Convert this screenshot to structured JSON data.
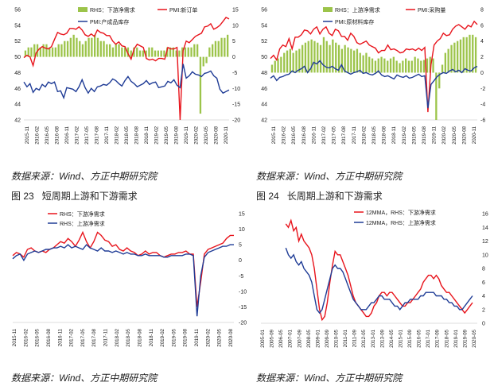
{
  "sources": [
    "数据来源：Wind、方正中期研究院",
    "数据来源：Wind、方正中期研究院",
    "数据来源：Wind、方正中期研究院",
    "数据来源：Wind、方正中期研究院"
  ],
  "captions": [
    {
      "label": "图 23",
      "title": "短周期上游和下游需求"
    },
    {
      "label": "图 24",
      "title": "长周期上游和下游需求"
    }
  ],
  "colors": {
    "red": "#e8131b",
    "blue": "#1f3c96",
    "green": "#9cc44a"
  },
  "chart_data": [
    {
      "type": "bar+line",
      "x_ticks": [
        "2015-11",
        "2016-02",
        "2016-05",
        "2016-08",
        "2016-11",
        "2017-02",
        "2017-05",
        "2017-08",
        "2017-11",
        "2018-02",
        "2018-05",
        "2018-08",
        "2018-11",
        "2019-02",
        "2019-05",
        "2019-08",
        "2019-11",
        "2020-02",
        "2020-05",
        "2020-08",
        "2020-11"
      ],
      "y_left_ticks": [
        "56",
        "54",
        "52",
        "50",
        "48",
        "46",
        "44",
        "42"
      ],
      "y_left_range": [
        42,
        56
      ],
      "y_right_ticks": [
        "15",
        "10",
        "5",
        "0",
        "-5",
        "-10",
        "-15",
        "-20"
      ],
      "y_right_range": [
        -20,
        15
      ],
      "series": [
        {
          "name": "RHS：下游净需求",
          "axis": "right",
          "kind": "bar",
          "values": [
            2,
            3,
            3,
            4,
            4,
            3,
            4,
            4,
            3,
            3,
            3,
            4,
            4,
            5,
            5,
            6,
            7,
            6,
            5,
            4,
            5,
            6,
            6,
            7,
            6,
            5,
            5,
            4,
            4,
            3,
            4,
            4,
            3,
            3,
            3,
            2,
            3,
            3,
            2,
            2,
            2,
            3,
            3,
            2,
            2,
            2,
            2,
            3,
            3,
            3,
            2,
            2,
            3,
            3,
            3,
            3,
            4,
            4,
            -18,
            -3,
            -2,
            3,
            4,
            5,
            5,
            6,
            6,
            7
          ]
        },
        {
          "name": "PMI:新订单",
          "axis": "left",
          "kind": "line",
          "values": [
            49.9,
            50.2,
            50.0,
            48.9,
            50.5,
            51.0,
            51.3,
            51.1,
            51.0,
            51.3,
            52.2,
            53.1,
            52.9,
            52.8,
            53.0,
            53.6,
            53.6,
            53.5,
            53.8,
            53.4,
            52.8,
            52.6,
            52.9,
            52.6,
            53.4,
            53.1,
            53.0,
            52.7,
            52.7,
            52.0,
            51.6,
            51.9,
            51.4,
            51.3,
            50.4,
            49.7,
            51.0,
            51.6,
            51.4,
            51.2,
            49.8,
            49.6,
            49.7,
            49.5,
            49.8,
            49.8,
            49.7,
            51.2,
            51.0,
            51.0,
            51.2,
            42.0,
            50.8,
            52.0,
            51.8,
            52.2,
            52.6,
            52.8,
            53.0,
            53.8,
            53.9,
            54.2,
            53.5,
            53.7,
            54.0,
            54.5,
            55.0,
            54.8
          ]
        },
        {
          "name": "PMI:产成品库存",
          "axis": "left",
          "kind": "line",
          "values": [
            46.8,
            46.2,
            46.6,
            45.5,
            46.0,
            45.8,
            46.5,
            46.2,
            46.8,
            46.6,
            46.8,
            45.6,
            45.7,
            44.8,
            46.1,
            46.0,
            45.9,
            45.6,
            46.2,
            47.1,
            46.1,
            45.4,
            46.0,
            45.6,
            46.2,
            46.3,
            46.5,
            46.4,
            46.7,
            47.2,
            47.0,
            46.6,
            46.3,
            47.0,
            47.5,
            46.9,
            46.6,
            46.2,
            46.4,
            46.6,
            47.0,
            46.5,
            46.7,
            46.8,
            46.1,
            46.2,
            46.3,
            46.9,
            46.7,
            47.1,
            46.4,
            46.1,
            49.1,
            47.3,
            47.6,
            48.1,
            47.8,
            47.7,
            47.5,
            47.9,
            48.0,
            48.2,
            47.6,
            47.3,
            45.9,
            45.4,
            45.6,
            45.8
          ]
        }
      ]
    },
    {
      "type": "bar+line",
      "x_ticks": [
        "2015-11",
        "2016-02",
        "2016-05",
        "2016-08",
        "2016-11",
        "2017-02",
        "2017-05",
        "2017-08",
        "2017-11",
        "2018-02",
        "2018-05",
        "2018-08",
        "2018-11",
        "2019-02",
        "2019-05",
        "2019-08",
        "2019-11",
        "2020-02",
        "2020-05",
        "2020-08",
        "2020-11"
      ],
      "y_left_ticks": [
        "56",
        "54",
        "52",
        "50",
        "48",
        "46",
        "44",
        "42"
      ],
      "y_left_range": [
        42,
        56
      ],
      "y_right_ticks": [
        "8",
        "6",
        "4",
        "2",
        "0",
        "-2",
        "-4",
        "-6"
      ],
      "y_right_range": [
        -6,
        8
      ],
      "series": [
        {
          "name": "RHS：上游净需求",
          "axis": "right",
          "kind": "bar",
          "values": [
            1.0,
            1.5,
            1.8,
            2.0,
            2.5,
            2.8,
            3.0,
            2.5,
            2.8,
            3.0,
            3.5,
            3.8,
            4.0,
            4.2,
            4.0,
            3.8,
            3.5,
            4.5,
            4.0,
            3.5,
            4.2,
            3.8,
            3.5,
            3.0,
            3.5,
            3.2,
            3.0,
            2.8,
            3.0,
            2.5,
            2.2,
            2.5,
            2.0,
            1.8,
            1.5,
            1.8,
            2.0,
            1.8,
            1.5,
            1.8,
            2.0,
            1.5,
            1.2,
            1.5,
            1.8,
            1.5,
            1.5,
            2.0,
            1.8,
            1.5,
            1.6,
            1.8,
            2.0,
            1.8,
            -6.0,
            -2.0,
            1.0,
            2.5,
            3.0,
            3.5,
            3.8,
            4.0,
            4.2,
            4.5,
            4.5,
            4.8,
            4.8,
            4.5
          ]
        },
        {
          "name": "PMI:采购量",
          "axis": "left",
          "kind": "line",
          "values": [
            49.8,
            50.2,
            49.6,
            51.0,
            51.5,
            51.3,
            52.3,
            51.0,
            52.5,
            52.5,
            52.8,
            53.4,
            53.3,
            52.9,
            53.5,
            53.8,
            52.9,
            53.5,
            53.8,
            53.0,
            52.7,
            53.5,
            53.3,
            52.6,
            52.6,
            52.1,
            53.0,
            52.6,
            51.8,
            51.6,
            51.8,
            52.0,
            51.5,
            51.3,
            51.1,
            50.5,
            50.8,
            50.8,
            51.5,
            50.9,
            51.0,
            50.8,
            50.5,
            50.6,
            51.0,
            50.9,
            51.0,
            50.8,
            51.1,
            50.8,
            51.2,
            43.0,
            49.0,
            51.5,
            52.0,
            52.3,
            53.0,
            52.7,
            52.8,
            53.5,
            53.9,
            54.1,
            53.8,
            53.5,
            54.0,
            53.8,
            54.5,
            54.1
          ]
        },
        {
          "name": "PMI:原材料库存",
          "axis": "left",
          "kind": "line",
          "values": [
            47.3,
            47.6,
            47.0,
            47.4,
            47.5,
            47.7,
            47.8,
            48.2,
            48.0,
            48.3,
            48.5,
            48.8,
            48.0,
            48.5,
            49.3,
            49.1,
            49.5,
            49.0,
            48.7,
            48.6,
            48.8,
            48.5,
            48.3,
            49.0,
            48.2,
            48.0,
            47.8,
            48.0,
            48.1,
            48.3,
            47.9,
            48.0,
            47.8,
            47.7,
            47.9,
            48.2,
            47.7,
            47.5,
            47.6,
            47.4,
            47.2,
            47.7,
            47.5,
            47.4,
            47.6,
            47.3,
            47.4,
            47.6,
            47.8,
            47.5,
            47.6,
            43.5,
            46.5,
            47.0,
            47.5,
            47.8,
            48.0,
            47.9,
            48.2,
            48.4,
            48.1,
            48.3,
            48.0,
            48.5,
            48.3,
            48.2,
            48.6,
            48.8
          ]
        }
      ]
    },
    {
      "type": "line",
      "x_ticks": [
        "2015-11",
        "2016-02",
        "2016-05",
        "2016-08",
        "2016-11",
        "2017-02",
        "2017-05",
        "2017-08",
        "2017-11",
        "2018-02",
        "2018-05",
        "2018-08",
        "2018-11",
        "2019-02",
        "2019-05",
        "2019-08",
        "2019-11",
        "2020-02",
        "2020-05",
        "2020-08"
      ],
      "y_ticks": [
        "15",
        "10",
        "5",
        "0",
        "-5",
        "-10",
        "-15",
        "-20"
      ],
      "y_range": [
        -20,
        15
      ],
      "series": [
        {
          "name": "RHS：下游净需求",
          "values": [
            1.5,
            2.5,
            2.0,
            1.0,
            3.5,
            4.0,
            3.0,
            2.5,
            3.0,
            2.5,
            3.5,
            4.0,
            5.0,
            6.0,
            5.5,
            7.0,
            6.0,
            4.5,
            6.5,
            9.0,
            6.0,
            4.0,
            6.0,
            9.0,
            8.0,
            6.5,
            6.0,
            4.5,
            5.0,
            3.5,
            3.0,
            4.0,
            3.0,
            2.5,
            1.5,
            2.0,
            3.0,
            2.0,
            2.5,
            2.5,
            1.5,
            1.0,
            1.5,
            2.0,
            2.0,
            2.5,
            2.5,
            3.0,
            2.0,
            2.0,
            -15.0,
            -7.0,
            2.0,
            3.5,
            4.0,
            4.5,
            5.0,
            5.5,
            7.0,
            8.0,
            8.0
          ]
        },
        {
          "name": "RHS：上游净需求",
          "values": [
            0.5,
            1.5,
            2.0,
            0.0,
            2.0,
            2.5,
            3.0,
            2.5,
            3.0,
            3.5,
            3.5,
            4.0,
            4.0,
            4.5,
            4.0,
            5.0,
            4.0,
            4.5,
            4.0,
            3.5,
            5.0,
            4.0,
            3.5,
            3.0,
            4.0,
            3.0,
            3.0,
            2.5,
            3.0,
            2.5,
            2.0,
            2.5,
            2.0,
            2.0,
            1.5,
            1.5,
            2.0,
            1.5,
            1.5,
            1.5,
            1.5,
            1.0,
            1.0,
            1.5,
            1.5,
            1.5,
            1.5,
            2.0,
            2.0,
            1.5,
            -18.0,
            -5.0,
            1.0,
            2.5,
            3.0,
            3.5,
            4.0,
            4.5,
            4.5,
            5.0,
            5.0
          ]
        }
      ]
    },
    {
      "type": "line",
      "x_ticks": [
        "2005-01",
        "2005-09",
        "2006-05",
        "2007-01",
        "2007-09",
        "2008-05",
        "2009-01",
        "2009-09",
        "2010-05",
        "2011-01",
        "2011-09",
        "2012-05",
        "2013-01",
        "2013-09",
        "2014-05",
        "2015-01",
        "2015-09",
        "2016-05",
        "2017-01",
        "2017-09",
        "2018-05",
        "2019-01",
        "2019-09",
        "2020-05"
      ],
      "y_ticks": [
        "16",
        "14",
        "12",
        "10",
        "8",
        "6",
        "4",
        "2",
        "0"
      ],
      "y_range": [
        0,
        16
      ],
      "series": [
        {
          "name": "12MMA，RHS：下游净需求",
          "values": [
            14.5,
            14.0,
            15.0,
            13.5,
            14.0,
            12.0,
            13.0,
            12.0,
            11.5,
            11.0,
            10.0,
            8.0,
            5.0,
            2.0,
            0.5,
            1.0,
            3.0,
            6.0,
            8.5,
            10.5,
            10.0,
            10.0,
            9.0,
            8.0,
            7.0,
            5.5,
            4.0,
            3.0,
            2.5,
            2.0,
            1.5,
            1.0,
            1.0,
            1.5,
            2.5,
            3.0,
            4.0,
            4.5,
            4.5,
            4.0,
            4.5,
            4.5,
            4.0,
            3.5,
            3.0,
            2.5,
            2.5,
            3.0,
            3.0,
            3.5,
            4.0,
            4.5,
            5.0,
            6.0,
            6.5,
            7.0,
            7.0,
            6.5,
            7.0,
            6.5,
            5.5,
            5.0,
            4.5,
            4.5,
            4.0,
            3.5,
            3.0,
            2.5,
            2.0,
            1.5,
            2.0,
            2.5,
            3.0
          ]
        },
        {
          "name": "12MMA，RHS：上游净需求",
          "values": [
            11.0,
            10.0,
            9.5,
            10.0,
            9.0,
            8.5,
            9.0,
            8.0,
            7.5,
            7.0,
            6.0,
            4.0,
            2.0,
            1.5,
            2.0,
            3.5,
            5.0,
            6.5,
            8.0,
            8.5,
            8.0,
            8.0,
            7.5,
            6.5,
            5.5,
            4.5,
            3.5,
            3.0,
            2.5,
            2.0,
            2.0,
            2.0,
            2.5,
            3.0,
            3.0,
            3.5,
            4.0,
            4.0,
            3.5,
            3.5,
            3.5,
            3.0,
            2.5,
            2.5,
            2.0,
            2.5,
            3.0,
            3.0,
            3.5,
            3.5,
            3.5,
            3.5,
            4.0,
            4.0,
            4.5,
            4.5,
            4.5,
            4.5,
            4.0,
            4.0,
            4.0,
            3.5,
            3.5,
            3.0,
            3.0,
            2.5,
            2.5,
            2.0,
            2.0,
            2.5,
            3.0,
            3.5,
            4.0
          ]
        }
      ]
    }
  ]
}
